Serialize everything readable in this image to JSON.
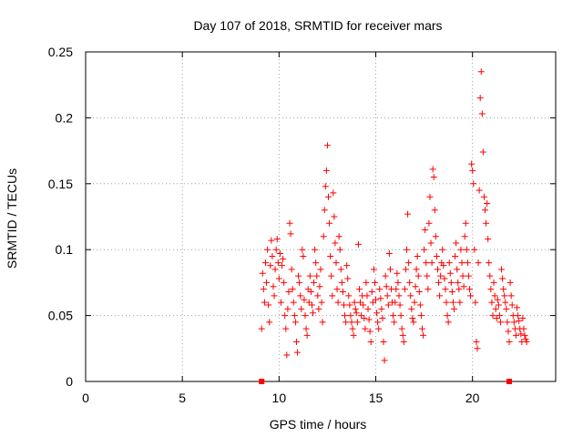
{
  "chart_data": {
    "type": "scatter",
    "title": "Day 107 of 2018, SRMTID for receiver mars",
    "xlabel": "GPS time / hours",
    "ylabel": "SRMTID / TECUs",
    "xlim": [
      0,
      24.3
    ],
    "ylim": [
      0,
      0.25
    ],
    "xticks": [
      0,
      5,
      10,
      15,
      20
    ],
    "xtick_labels": [
      "0",
      "5",
      "10",
      "15",
      "20"
    ],
    "yticks": [
      0,
      0.05,
      0.1,
      0.15,
      0.2,
      0.25
    ],
    "ytick_labels": [
      "0",
      "0.05",
      "0.1",
      "0.15",
      "0.2",
      "0.25"
    ],
    "grid": true,
    "marker": "plus",
    "marker_color": "#ff0000",
    "axis_markers": [
      {
        "x": 9.1,
        "y": 0,
        "shape": "square"
      },
      {
        "x": 21.9,
        "y": 0,
        "shape": "square"
      }
    ],
    "series": [
      {
        "name": "SRMTID",
        "points": [
          [
            9.1,
            0.04
          ],
          [
            9.15,
            0.082
          ],
          [
            9.2,
            0.07
          ],
          [
            9.25,
            0.06
          ],
          [
            9.3,
            0.09
          ],
          [
            9.35,
            0.075
          ],
          [
            9.4,
            0.1
          ],
          [
            9.45,
            0.058
          ],
          [
            9.5,
            0.045
          ],
          [
            9.55,
            0.088
          ],
          [
            9.6,
            0.107
          ],
          [
            9.65,
            0.095
          ],
          [
            9.7,
            0.072
          ],
          [
            9.75,
            0.065
          ],
          [
            9.8,
            0.085
          ],
          [
            9.85,
            0.1
          ],
          [
            9.9,
            0.108
          ],
          [
            9.95,
            0.09
          ],
          [
            10.0,
            0.078
          ],
          [
            10.05,
            0.097
          ],
          [
            10.1,
            0.06
          ],
          [
            10.15,
            0.088
          ],
          [
            10.2,
            0.093
          ],
          [
            10.25,
            0.075
          ],
          [
            10.3,
            0.05
          ],
          [
            10.35,
            0.04
          ],
          [
            10.4,
            0.02
          ],
          [
            10.45,
            0.055
          ],
          [
            10.5,
            0.068
          ],
          [
            10.55,
            0.12
          ],
          [
            10.6,
            0.112
          ],
          [
            10.65,
            0.085
          ],
          [
            10.7,
            0.07
          ],
          [
            10.75,
            0.06
          ],
          [
            10.8,
            0.05
          ],
          [
            10.85,
            0.045
          ],
          [
            10.9,
            0.03
          ],
          [
            10.95,
            0.022
          ],
          [
            11.0,
            0.08
          ],
          [
            11.05,
            0.075
          ],
          [
            11.1,
            0.065
          ],
          [
            11.15,
            0.055
          ],
          [
            11.2,
            0.1
          ],
          [
            11.25,
            0.095
          ],
          [
            11.3,
            0.062
          ],
          [
            11.35,
            0.05
          ],
          [
            11.4,
            0.04
          ],
          [
            11.45,
            0.035
          ],
          [
            11.5,
            0.07
          ],
          [
            11.55,
            0.06
          ],
          [
            11.6,
            0.08
          ],
          [
            11.65,
            0.068
          ],
          [
            11.7,
            0.058
          ],
          [
            11.75,
            0.052
          ],
          [
            11.8,
            0.075
          ],
          [
            11.85,
            0.1
          ],
          [
            11.9,
            0.09
          ],
          [
            11.95,
            0.08
          ],
          [
            12.0,
            0.065
          ],
          [
            12.05,
            0.055
          ],
          [
            12.1,
            0.072
          ],
          [
            12.15,
            0.085
          ],
          [
            12.2,
            0.06
          ],
          [
            12.25,
            0.045
          ],
          [
            12.3,
            0.11
          ],
          [
            12.35,
            0.13
          ],
          [
            12.4,
            0.148
          ],
          [
            12.45,
            0.16
          ],
          [
            12.5,
            0.179
          ],
          [
            12.55,
            0.14
          ],
          [
            12.6,
            0.12
          ],
          [
            12.65,
            0.095
          ],
          [
            12.7,
            0.08
          ],
          [
            12.75,
            0.065
          ],
          [
            12.8,
            0.143
          ],
          [
            12.85,
            0.125
          ],
          [
            12.9,
            0.105
          ],
          [
            12.95,
            0.09
          ],
          [
            13.0,
            0.07
          ],
          [
            13.05,
            0.06
          ],
          [
            13.1,
            0.11
          ],
          [
            13.15,
            0.1
          ],
          [
            13.2,
            0.085
          ],
          [
            13.25,
            0.075
          ],
          [
            13.3,
            0.068
          ],
          [
            13.35,
            0.058
          ],
          [
            13.4,
            0.05
          ],
          [
            13.45,
            0.045
          ],
          [
            13.5,
            0.088
          ],
          [
            13.55,
            0.078
          ],
          [
            13.6,
            0.065
          ],
          [
            13.65,
            0.058
          ],
          [
            13.7,
            0.05
          ],
          [
            13.75,
            0.045
          ],
          [
            13.8,
            0.04
          ],
          [
            13.85,
            0.035
          ],
          [
            13.9,
            0.06
          ],
          [
            13.95,
            0.055
          ],
          [
            14.0,
            0.052
          ],
          [
            14.05,
            0.045
          ],
          [
            14.1,
            0.104
          ],
          [
            14.15,
            0.07
          ],
          [
            14.2,
            0.06
          ],
          [
            14.25,
            0.05
          ],
          [
            14.3,
            0.065
          ],
          [
            14.35,
            0.058
          ],
          [
            14.4,
            0.048
          ],
          [
            14.45,
            0.04
          ],
          [
            14.5,
            0.075
          ],
          [
            14.55,
            0.065
          ],
          [
            14.6,
            0.055
          ],
          [
            14.65,
            0.047
          ],
          [
            14.7,
            0.038
          ],
          [
            14.75,
            0.03
          ],
          [
            14.8,
            0.068
          ],
          [
            14.85,
            0.06
          ],
          [
            14.9,
            0.085
          ],
          [
            14.95,
            0.075
          ],
          [
            15.0,
            0.062
          ],
          [
            15.05,
            0.052
          ],
          [
            15.1,
            0.045
          ],
          [
            15.15,
            0.04
          ],
          [
            15.2,
            0.07
          ],
          [
            15.25,
            0.063
          ],
          [
            15.3,
            0.055
          ],
          [
            15.35,
            0.048
          ],
          [
            15.4,
            0.03
          ],
          [
            15.45,
            0.016
          ],
          [
            15.5,
            0.08
          ],
          [
            15.55,
            0.072
          ],
          [
            15.6,
            0.065
          ],
          [
            15.65,
            0.058
          ],
          [
            15.7,
            0.097
          ],
          [
            15.75,
            0.085
          ],
          [
            15.8,
            0.07
          ],
          [
            15.85,
            0.06
          ],
          [
            15.9,
            0.05
          ],
          [
            15.95,
            0.045
          ],
          [
            16.0,
            0.06
          ],
          [
            16.05,
            0.07
          ],
          [
            16.1,
            0.082
          ],
          [
            16.15,
            0.075
          ],
          [
            16.2,
            0.065
          ],
          [
            16.25,
            0.058
          ],
          [
            16.3,
            0.05
          ],
          [
            16.35,
            0.04
          ],
          [
            16.4,
            0.035
          ],
          [
            16.45,
            0.03
          ],
          [
            16.5,
            0.07
          ],
          [
            16.55,
            0.085
          ],
          [
            16.6,
            0.1
          ],
          [
            16.65,
            0.127
          ],
          [
            16.7,
            0.09
          ],
          [
            16.75,
            0.075
          ],
          [
            16.8,
            0.065
          ],
          [
            16.85,
            0.055
          ],
          [
            16.9,
            0.048
          ],
          [
            16.95,
            0.045
          ],
          [
            17.0,
            0.06
          ],
          [
            17.05,
            0.072
          ],
          [
            17.1,
            0.085
          ],
          [
            17.15,
            0.095
          ],
          [
            17.2,
            0.08
          ],
          [
            17.25,
            0.068
          ],
          [
            17.3,
            0.058
          ],
          [
            17.35,
            0.05
          ],
          [
            17.4,
            0.04
          ],
          [
            17.45,
            0.035
          ],
          [
            17.5,
            0.1
          ],
          [
            17.55,
            0.115
          ],
          [
            17.6,
            0.09
          ],
          [
            17.65,
            0.08
          ],
          [
            17.7,
            0.07
          ],
          [
            17.75,
            0.12
          ],
          [
            17.8,
            0.14
          ],
          [
            17.85,
            0.105
          ],
          [
            17.9,
            0.09
          ],
          [
            17.95,
            0.161
          ],
          [
            18.0,
            0.155
          ],
          [
            18.05,
            0.13
          ],
          [
            18.1,
            0.11
          ],
          [
            18.15,
            0.095
          ],
          [
            18.2,
            0.085
          ],
          [
            18.25,
            0.075
          ],
          [
            18.3,
            0.065
          ],
          [
            18.35,
            0.08
          ],
          [
            18.4,
            0.09
          ],
          [
            18.45,
            0.1
          ],
          [
            18.5,
            0.088
          ],
          [
            18.55,
            0.078
          ],
          [
            18.6,
            0.07
          ],
          [
            18.65,
            0.06
          ],
          [
            18.7,
            0.05
          ],
          [
            18.75,
            0.045
          ],
          [
            18.8,
            0.09
          ],
          [
            18.85,
            0.082
          ],
          [
            18.9,
            0.075
          ],
          [
            18.95,
            0.068
          ],
          [
            19.0,
            0.06
          ],
          [
            19.05,
            0.055
          ],
          [
            19.1,
            0.095
          ],
          [
            19.15,
            0.105
          ],
          [
            19.2,
            0.085
          ],
          [
            19.25,
            0.075
          ],
          [
            19.3,
            0.07
          ],
          [
            19.35,
            0.06
          ],
          [
            19.4,
            0.1
          ],
          [
            19.45,
            0.09
          ],
          [
            19.5,
            0.08
          ],
          [
            19.55,
            0.072
          ],
          [
            19.6,
            0.11
          ],
          [
            19.65,
            0.12
          ],
          [
            19.7,
            0.1
          ],
          [
            19.75,
            0.09
          ],
          [
            19.8,
            0.08
          ],
          [
            19.85,
            0.07
          ],
          [
            19.9,
            0.065
          ],
          [
            19.95,
            0.165
          ],
          [
            20.0,
            0.16
          ],
          [
            20.05,
            0.15
          ],
          [
            20.1,
            0.1
          ],
          [
            20.15,
            0.06
          ],
          [
            20.2,
            0.03
          ],
          [
            20.25,
            0.025
          ],
          [
            20.3,
            0.09
          ],
          [
            20.35,
            0.145
          ],
          [
            20.4,
            0.215
          ],
          [
            20.45,
            0.235
          ],
          [
            20.5,
            0.203
          ],
          [
            20.55,
            0.174
          ],
          [
            20.6,
            0.14
          ],
          [
            20.65,
            0.13
          ],
          [
            20.7,
            0.12
          ],
          [
            20.75,
            0.135
          ],
          [
            20.8,
            0.108
          ],
          [
            20.85,
            0.09
          ],
          [
            20.9,
            0.08
          ],
          [
            20.95,
            0.07
          ],
          [
            21.0,
            0.06
          ],
          [
            21.05,
            0.05
          ],
          [
            21.1,
            0.075
          ],
          [
            21.15,
            0.065
          ],
          [
            21.2,
            0.055
          ],
          [
            21.25,
            0.048
          ],
          [
            21.3,
            0.062
          ],
          [
            21.35,
            0.058
          ],
          [
            21.4,
            0.05
          ],
          [
            21.45,
            0.045
          ],
          [
            21.5,
            0.085
          ],
          [
            21.55,
            0.078
          ],
          [
            21.6,
            0.07
          ],
          [
            21.65,
            0.065
          ],
          [
            21.7,
            0.06
          ],
          [
            21.75,
            0.055
          ],
          [
            21.8,
            0.045
          ],
          [
            21.85,
            0.038
          ],
          [
            21.9,
            0.03
          ],
          [
            21.95,
            0.075
          ],
          [
            22.0,
            0.065
          ],
          [
            22.05,
            0.058
          ],
          [
            22.1,
            0.05
          ],
          [
            22.15,
            0.045
          ],
          [
            22.2,
            0.04
          ],
          [
            22.25,
            0.035
          ],
          [
            22.3,
            0.056
          ],
          [
            22.35,
            0.05
          ],
          [
            22.4,
            0.046
          ],
          [
            22.45,
            0.04
          ],
          [
            22.5,
            0.036
          ],
          [
            22.55,
            0.03
          ],
          [
            22.6,
            0.048
          ],
          [
            22.65,
            0.04
          ],
          [
            22.7,
            0.035
          ],
          [
            22.75,
            0.032
          ],
          [
            22.8,
            0.03
          ]
        ]
      }
    ]
  }
}
